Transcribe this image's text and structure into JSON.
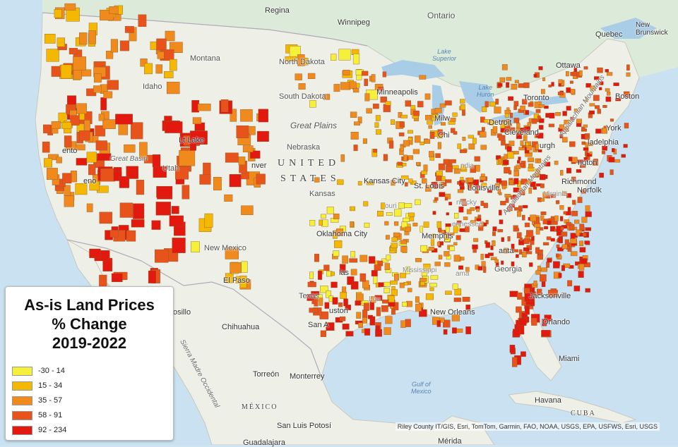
{
  "legend": {
    "title_lines": [
      "As-is Land Prices",
      "% Change",
      "2019-2022"
    ],
    "classes": [
      {
        "label": "-30 - 14",
        "color": "#f5f03a"
      },
      {
        "label": "15 - 34",
        "color": "#f5b800"
      },
      {
        "label": "35 - 57",
        "color": "#f08a1c"
      },
      {
        "label": "58 - 91",
        "color": "#e8531c"
      },
      {
        "label": "92 - 234",
        "color": "#e3180f"
      }
    ]
  },
  "attribution": "Riley County IT/GIS, Esri, TomTom, Garmin, FAO, NOAA, USGS, EPA, USFWS, Esri, USGS",
  "labels": {
    "regina": "Regina",
    "winnipeg": "Winnipeg",
    "ontario": "Ontario",
    "quebec": "Quebec",
    "new_brunswick": "New\nBrunswick",
    "ottawa": "Ottawa",
    "toronto": "Toronto",
    "boston": "Boston",
    "montana": "Montana",
    "north_dakota": "North Dakota",
    "south_dakota": "South Dakota",
    "minneapolis": "Minneapolis",
    "idaho": "Idaho",
    "great_plains": "Great Plains",
    "nebraska": "Nebraska",
    "united_states": "UNITED",
    "states": "STATES",
    "kansas": "Kansas",
    "kansas_city": "Kansas City",
    "st_louis": "St. Louis",
    "louisville": "Louisville",
    "cleveland": "Cleveland",
    "detroit": "Detroit",
    "milwaukee": "Milw",
    "chicago": "Chi",
    "york": "York",
    "philadelphia": "ladelphia",
    "washington": "ngton",
    "richmond": "Richmond",
    "norfolk": "Norfolk",
    "atlanta": "anta",
    "georgia": "Georgia",
    "memphis": "Memphis",
    "oklahoma_city": "Oklahoma City",
    "dallas": "las",
    "texas": "Texas",
    "houston": "uston",
    "new_orleans": "New Orleans",
    "jacksonville": "Jacksonville",
    "orlando": "Orlando",
    "miami": "Miami",
    "havana": "Havana",
    "cuba": "CUBA",
    "new_mexico": "New Mexico",
    "el_paso": "El Paso",
    "hermosillo": "osillo",
    "chihuahua": "Chihuahua",
    "torreon": "Torreón",
    "monterrey": "Monterrey",
    "mexico": "MÉXICO",
    "san_luis_potosi": "San Luis Potosí",
    "guadalajara": "Guadalajara",
    "merida": "Mérida",
    "gulf_of_mexico": "Gulf of\nMexico",
    "lake_superior": "Lake\nSuperior",
    "lake_huron": "Lake\nHuron",
    "great_basin": "Great Basin",
    "utah": "Utah",
    "denver": "nver",
    "salt_lake": "Lt Lake",
    "sierra_madre": "Sierra Madre Occidental",
    "appalachian": "Appalachian Mountains",
    "louisiana_short": "Lou",
    "mississippi_short": "Mississippi",
    "missouri_short": "ouri",
    "kentucky_short": "ntucky",
    "alabama_short": "ama",
    "tennessee_short": "ennessee",
    "virginia_short": "Virginia",
    "pittsburgh_short": "urgh",
    "indiana_short": "ndia",
    "san_antonio": "San A",
    "sacramento": "ento",
    "reno": "eno"
  }
}
